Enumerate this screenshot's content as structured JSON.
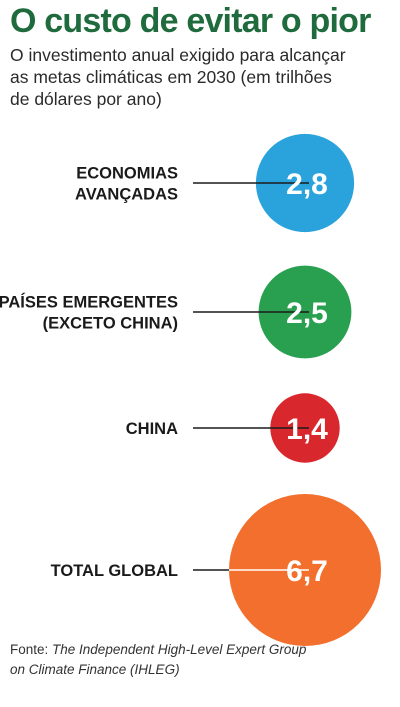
{
  "title": "O custo de evitar o pior",
  "subtitle_lines": [
    "O investimento anual exigido para alcançar",
    "as metas climáticas em 2030 (em trilhões",
    "de dólares por ano)"
  ],
  "source": {
    "prefix": "Fonte: ",
    "text_lines": [
      "The Independent High-Level Expert Group",
      "on Climate Finance (IHLEG)"
    ]
  },
  "chart_data": {
    "type": "bubble",
    "title": "O custo de evitar o pior",
    "unit": "trilhões de dólares por ano",
    "categories": [
      {
        "label_lines": [
          "ECONOMIAS",
          "AVANÇADAS"
        ],
        "value": 2.8,
        "value_label": "2,8",
        "color": "#2aa3dd"
      },
      {
        "label_lines": [
          "PAÍSES EMERGENTES",
          "(EXCETO CHINA)"
        ],
        "value": 2.5,
        "value_label": "2,5",
        "color": "#28a050"
      },
      {
        "label_lines": [
          "CHINA"
        ],
        "value": 1.4,
        "value_label": "1,4",
        "color": "#d9272e"
      },
      {
        "label_lines": [
          "TOTAL GLOBAL"
        ],
        "value": 6.7,
        "value_label": "6,7",
        "color": "#f26f2d"
      }
    ]
  }
}
